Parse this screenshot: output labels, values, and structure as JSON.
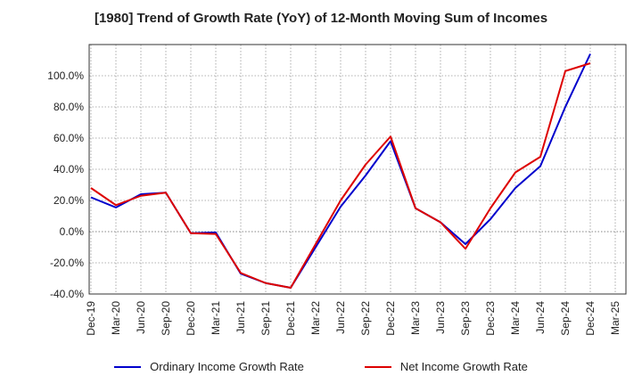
{
  "chart_data": {
    "type": "line",
    "title": "[1980]  Trend of Growth Rate (YoY) of 12-Month Moving Sum of Incomes",
    "x": [
      "Dec-19",
      "Mar-20",
      "Jun-20",
      "Sep-20",
      "Dec-20",
      "Mar-21",
      "Jun-21",
      "Sep-21",
      "Dec-21",
      "Mar-22",
      "Jun-22",
      "Sep-22",
      "Dec-22",
      "Mar-23",
      "Jun-23",
      "Sep-23",
      "Dec-23",
      "Mar-24",
      "Jun-24",
      "Sep-24",
      "Dec-24",
      "Mar-25"
    ],
    "xlabel": "",
    "ylabel": "",
    "ylim": [
      -40,
      120
    ],
    "yticks": [
      -40,
      -20,
      0,
      20,
      40,
      60,
      80,
      100
    ],
    "ytick_labels": [
      "-40.0%",
      "-20.0%",
      "0.0%",
      "20.0%",
      "40.0%",
      "60.0%",
      "80.0%",
      "100.0%"
    ],
    "grid": true,
    "legend_position": "bottom",
    "series": [
      {
        "name": "Ordinary Income Growth Rate",
        "color": "#0000cc",
        "values": [
          22,
          15.5,
          24,
          25,
          -1,
          -0.5,
          -27,
          -33,
          -36,
          -10,
          16,
          36,
          58,
          15,
          6,
          -8,
          8,
          28,
          42,
          80,
          114,
          null
        ]
      },
      {
        "name": "Net Income Growth Rate",
        "color": "#dd0000",
        "values": [
          28,
          17,
          23,
          25,
          -1,
          -1.5,
          -26.5,
          -33,
          -36,
          -8,
          20,
          43,
          61,
          15,
          6,
          -11,
          15,
          38,
          48,
          103,
          108,
          null
        ]
      }
    ]
  }
}
